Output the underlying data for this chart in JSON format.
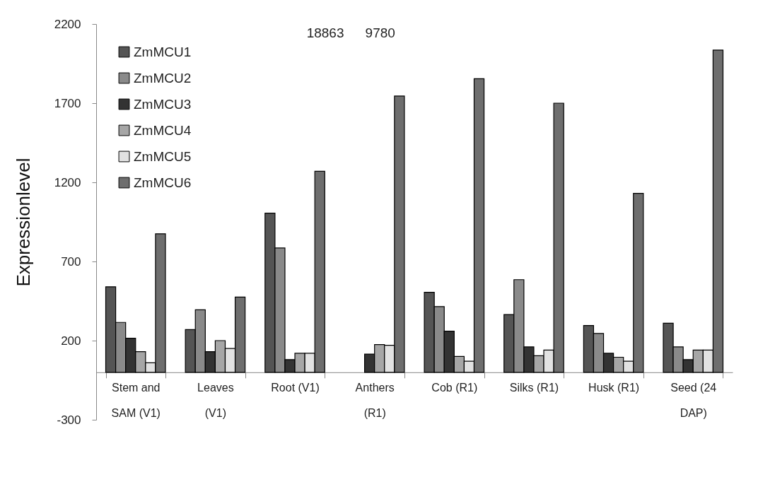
{
  "chart_data": {
    "type": "bar",
    "ylabel": "Expressionlevel",
    "categories": [
      "Stem and SAM (V1)",
      "Leaves (V1)",
      "Root (V1)",
      "Anthers (R1)",
      "Cob (R1)",
      "Silks (R1)",
      "Husk (R1)",
      "Seed (24 DAP)"
    ],
    "series": [
      {
        "name": "ZmMCU1",
        "color": "#555555",
        "values": [
          540,
          270,
          1005,
          null,
          505,
          365,
          295,
          310
        ]
      },
      {
        "name": "ZmMCU2",
        "color": "#8a8a8a",
        "values": [
          315,
          395,
          785,
          null,
          415,
          585,
          245,
          160
        ]
      },
      {
        "name": "ZmMCU3",
        "color": "#333333",
        "values": [
          215,
          130,
          80,
          115,
          260,
          160,
          120,
          80
        ]
      },
      {
        "name": "ZmMCU4",
        "color": "#a6a6a6",
        "values": [
          130,
          200,
          120,
          175,
          100,
          105,
          95,
          140
        ]
      },
      {
        "name": "ZmMCU5",
        "color": "#e2e2e2",
        "values": [
          60,
          150,
          120,
          170,
          70,
          140,
          70,
          140
        ]
      },
      {
        "name": "ZmMCU6",
        "color": "#6e6e6e",
        "values": [
          875,
          475,
          1270,
          1745,
          1855,
          1700,
          1130,
          2035
        ]
      }
    ],
    "annotations": [
      "18863",
      "9780"
    ],
    "ylim": [
      -300,
      2200
    ],
    "yticks": [
      -300,
      200,
      700,
      1200,
      1700,
      2200
    ],
    "grid": false,
    "legend": "top left"
  }
}
